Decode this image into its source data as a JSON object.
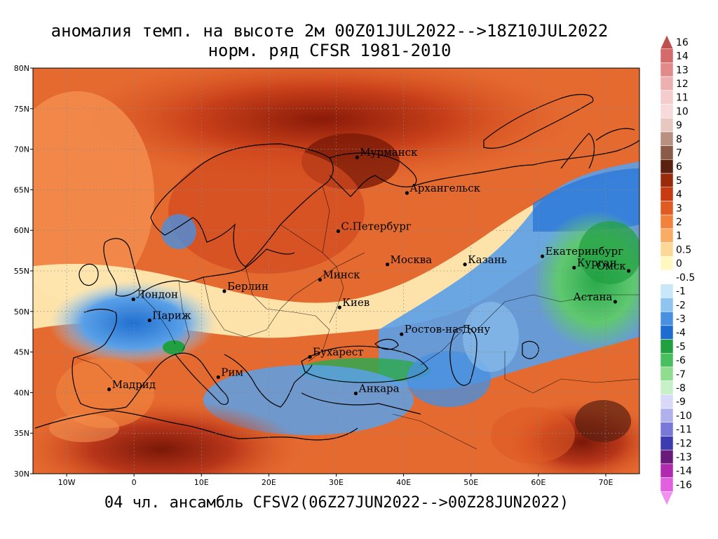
{
  "header": {
    "title_line1": "аномалия темп. на высоте 2м 00Z01JUL2022-->18Z10JUL2022",
    "title_line2": "норм. ряд CFSR 1981-2010"
  },
  "footer": {
    "text": "04 чл. ансамбль CFSV2(06Z27JUN2022-->00Z28JUN2022)"
  },
  "map": {
    "lat_range": [
      30,
      80
    ],
    "lon_range": [
      -15,
      75
    ],
    "lat_ticks": [
      "30N",
      "35N",
      "40N",
      "45N",
      "50N",
      "55N",
      "60N",
      "65N",
      "70N",
      "75N",
      "80N"
    ],
    "lon_ticks": [
      "10W",
      "0",
      "10E",
      "20E",
      "30E",
      "40E",
      "50E",
      "60E",
      "70E"
    ],
    "lon_tick_values": [
      -10,
      0,
      10,
      20,
      30,
      40,
      50,
      60,
      70
    ],
    "lat_tick_values": [
      30,
      35,
      40,
      45,
      50,
      55,
      60,
      65,
      70,
      75,
      80
    ],
    "cities": [
      {
        "name": "Мурманск",
        "lat": 69.0,
        "lon": 33.1
      },
      {
        "name": "Архангельск",
        "lat": 64.6,
        "lon": 40.5
      },
      {
        "name": "С.Петербург",
        "lat": 59.9,
        "lon": 30.3
      },
      {
        "name": "Москва",
        "lat": 55.8,
        "lon": 37.6
      },
      {
        "name": "Казань",
        "lat": 55.8,
        "lon": 49.1
      },
      {
        "name": "Екатеринбург",
        "lat": 56.8,
        "lon": 60.6
      },
      {
        "name": "Курган",
        "lat": 55.4,
        "lon": 65.3
      },
      {
        "name": "Омск",
        "lat": 55.0,
        "lon": 73.4
      },
      {
        "name": "Астана",
        "lat": 51.2,
        "lon": 71.4
      },
      {
        "name": "Минск",
        "lat": 53.9,
        "lon": 27.6
      },
      {
        "name": "Берлин",
        "lat": 52.5,
        "lon": 13.4
      },
      {
        "name": "Лондон",
        "lat": 51.5,
        "lon": -0.1
      },
      {
        "name": "Париж",
        "lat": 48.9,
        "lon": 2.3
      },
      {
        "name": "Киев",
        "lat": 50.5,
        "lon": 30.5
      },
      {
        "name": "Ростов-на-Дону",
        "lat": 47.2,
        "lon": 39.7
      },
      {
        "name": "Бухарест",
        "lat": 44.4,
        "lon": 26.1
      },
      {
        "name": "Рим",
        "lat": 41.9,
        "lon": 12.5
      },
      {
        "name": "Мадрид",
        "lat": 40.4,
        "lon": -3.7
      },
      {
        "name": "Анкара",
        "lat": 39.9,
        "lon": 32.9
      }
    ]
  },
  "colorbar": {
    "labels": [
      "16",
      "14",
      "13",
      "12",
      "11",
      "10",
      "9",
      "8",
      "7",
      "6",
      "5",
      "4",
      "3",
      "2",
      "1",
      "0.5",
      "0",
      "-0.5",
      "-1",
      "-2",
      "-3",
      "-4",
      "-5",
      "-6",
      "-7",
      "-8",
      "-9",
      "-10",
      "-11",
      "-12",
      "-13",
      "-14",
      "-16"
    ],
    "colors": [
      "#c0504d",
      "#d46a6a",
      "#e08a8a",
      "#ecb0b0",
      "#f4cccc",
      "#f8dada",
      "#e6c8c0",
      "#b89080",
      "#8c5a48",
      "#5a2010",
      "#9a2a0c",
      "#c83a12",
      "#e05a24",
      "#f0823c",
      "#f8ac64",
      "#fcd898",
      "#fff8c0",
      "#ffffff",
      "#c8e8f8",
      "#90c4f0",
      "#4890e0",
      "#1e6cd0",
      "#20a040",
      "#48c060",
      "#90dc90",
      "#c8f0c8",
      "#d8d8f8",
      "#b0b0ec",
      "#7878d8",
      "#3c3cb0",
      "#6a1a7a",
      "#b02ab0",
      "#e060e0",
      "#f090f0"
    ]
  }
}
